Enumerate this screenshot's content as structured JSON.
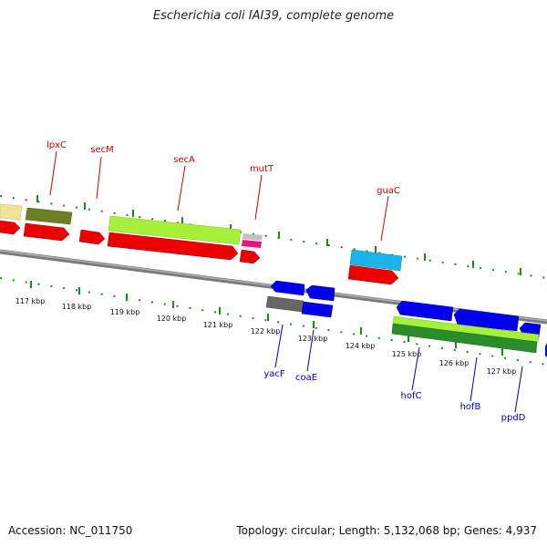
{
  "title": "Escherichia coli IAI39, complete genome",
  "footer": {
    "accession": "Accession: NC_011750",
    "summary": "Topology: circular; Length: 5,132,068 bp; Genes: 4,937"
  },
  "ticks": [
    "117 kbp",
    "118 kbp",
    "119 kbp",
    "120 kbp",
    "121 kbp",
    "122 kbp",
    "123 kbp",
    "124 kbp",
    "125 kbp",
    "126 kbp",
    "127 kbp"
  ],
  "genes_forward": [
    "lpxC",
    "secM",
    "secA",
    "mutT",
    "guaC"
  ],
  "genes_reverse": [
    "yacF",
    "coaE",
    "hofC",
    "hofB",
    "ppdD"
  ],
  "colors": {
    "forward_label": "#cc0000",
    "reverse_label": "#0000aa",
    "cds_red": "#ff0000",
    "cds_blue": "#0000ee",
    "cds_cyan": "#1ab4e8",
    "light_green": "#a6f03a",
    "dark_olive": "#6b7f23",
    "dark_green": "#2a8c2a",
    "tick_green": "#1a8a1a",
    "backbone": "#888888"
  }
}
